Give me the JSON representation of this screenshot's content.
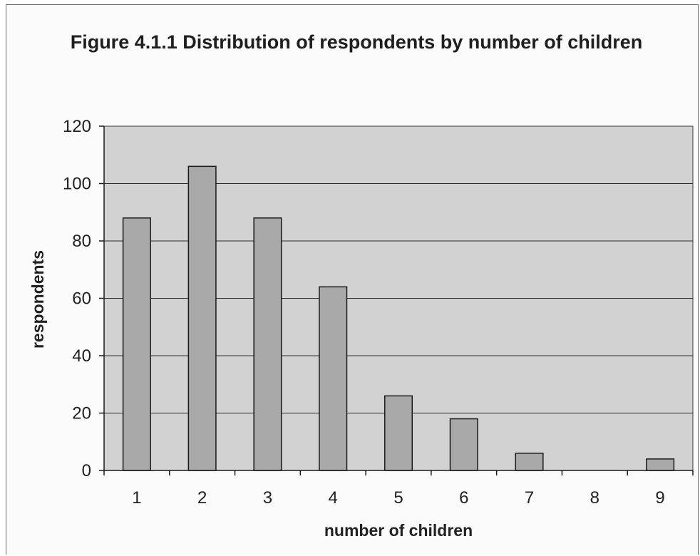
{
  "chart_data": {
    "type": "bar",
    "title": "Figure 4.1.1 Distribution of respondents by number of children",
    "xlabel": "number of children",
    "ylabel": "respondents",
    "categories": [
      "1",
      "2",
      "3",
      "4",
      "5",
      "6",
      "7",
      "8",
      "9"
    ],
    "values": [
      88,
      106,
      88,
      64,
      26,
      18,
      6,
      0,
      4
    ],
    "ylim": [
      0,
      120
    ],
    "yticks": [
      "0",
      "20",
      "40",
      "60",
      "80",
      "100",
      "120"
    ],
    "grid": true,
    "legend": "none",
    "colors": {
      "plot_background": "#d2d2d2",
      "bar_fill": "#a9a9a9",
      "bar_stroke": "#1a1a1a",
      "gridline": "#2a2a2a"
    }
  }
}
